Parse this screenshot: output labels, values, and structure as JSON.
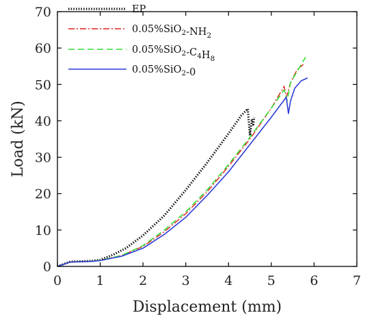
{
  "chart_data": {
    "type": "line",
    "xlabel": "Displacement (mm)",
    "ylabel": "Load (kN)",
    "xlim": [
      0,
      7
    ],
    "ylim": [
      0,
      70
    ],
    "xticks": [
      0,
      1,
      2,
      3,
      4,
      5,
      6,
      7
    ],
    "yticks": [
      0,
      10,
      20,
      30,
      40,
      50,
      60,
      70
    ],
    "grid": false,
    "legend_position": "top-left",
    "series": [
      {
        "name": "EP",
        "legend": {
          "base": "EP",
          "sub1": "",
          "mid": "",
          "sub2": "",
          "tail": ""
        },
        "color": "#111111",
        "style": "dotted",
        "x": [
          0,
          0.3,
          0.8,
          1.0,
          1.3,
          1.6,
          2.0,
          2.5,
          3.0,
          3.5,
          4.0,
          4.3,
          4.45,
          4.5,
          4.55,
          4.58,
          4.6
        ],
        "y": [
          0,
          1.3,
          1.5,
          1.8,
          3.2,
          5.0,
          8.5,
          14.0,
          21.0,
          28.5,
          36.5,
          41.5,
          43.3,
          36.0,
          40.5,
          39.0,
          41.0
        ]
      },
      {
        "name": "0.05%SiO2-NH2",
        "legend": {
          "base": "0.05%SiO",
          "sub1": "2",
          "mid": "-NH",
          "sub2": "2",
          "tail": ""
        },
        "color": "#e0201a",
        "style": "dashdot",
        "x": [
          0,
          0.3,
          0.8,
          1.0,
          1.5,
          2.0,
          2.5,
          3.0,
          3.5,
          4.0,
          4.5,
          5.0,
          5.3,
          5.35,
          5.45,
          5.6,
          5.75
        ],
        "y": [
          0,
          1.2,
          1.4,
          1.7,
          3.0,
          5.5,
          9.5,
          14.5,
          20.5,
          27.5,
          35.0,
          43.5,
          49.5,
          46.5,
          50.5,
          54.0,
          55.5
        ]
      },
      {
        "name": "0.05%SiO2-C4H8",
        "legend": {
          "base": "0.05%SiO",
          "sub1": "2",
          "mid": "-C",
          "sub2": "4",
          "tail": "H8"
        },
        "color": "#33dd33",
        "style": "dashed",
        "x": [
          0,
          0.3,
          0.8,
          1.0,
          1.5,
          2.0,
          2.5,
          3.0,
          3.5,
          4.0,
          4.5,
          5.0,
          5.3,
          5.37,
          5.45,
          5.6,
          5.8
        ],
        "y": [
          0,
          1.2,
          1.4,
          1.7,
          3.0,
          5.7,
          10.0,
          15.0,
          21.0,
          28.0,
          35.5,
          43.5,
          48.5,
          45.5,
          50.5,
          53.5,
          57.5
        ]
      },
      {
        "name": "0.05%SiO2-0",
        "legend": {
          "base": "0.05%SiO",
          "sub1": "2",
          "mid": "-0",
          "sub2": "",
          "tail": ""
        },
        "color": "#2b3bd6",
        "style": "solid",
        "x": [
          0,
          0.3,
          0.8,
          1.0,
          1.5,
          2.0,
          2.5,
          3.0,
          3.5,
          4.0,
          4.5,
          5.0,
          5.35,
          5.4,
          5.45,
          5.55,
          5.7,
          5.85
        ],
        "y": [
          0,
          1.2,
          1.4,
          1.6,
          2.8,
          5.0,
          8.8,
          13.5,
          19.5,
          26.0,
          33.5,
          41.0,
          46.5,
          42.0,
          45.5,
          49.0,
          51.0,
          51.8
        ]
      }
    ]
  }
}
